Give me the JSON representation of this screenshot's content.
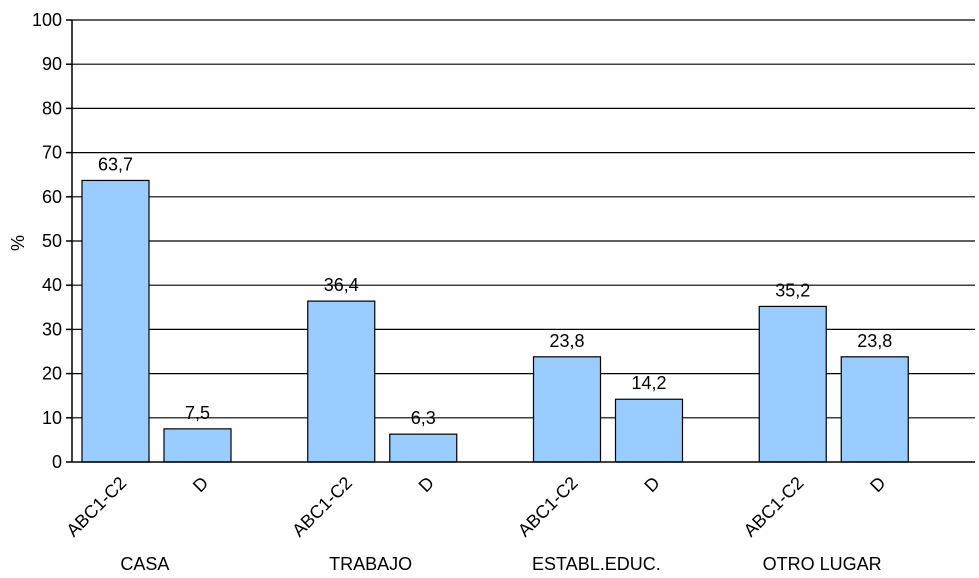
{
  "chart_data": {
    "type": "bar",
    "title": "",
    "ylabel": "%",
    "xlabel": "",
    "ylim": [
      0,
      100
    ],
    "yticks": [
      0,
      10,
      20,
      30,
      40,
      50,
      60,
      70,
      80,
      90,
      100
    ],
    "grid": true,
    "groups": [
      {
        "name": "CASA",
        "bars": [
          {
            "category": "ABC1-C2",
            "value": 63.7,
            "label": "63,7"
          },
          {
            "category": "D",
            "value": 7.5,
            "label": "7,5"
          }
        ]
      },
      {
        "name": "TRABAJO",
        "bars": [
          {
            "category": "ABC1-C2",
            "value": 36.4,
            "label": "36,4"
          },
          {
            "category": "D",
            "value": 6.3,
            "label": "6,3"
          }
        ]
      },
      {
        "name": "ESTABL.EDUC.",
        "bars": [
          {
            "category": "ABC1-C2",
            "value": 23.8,
            "label": "23,8"
          },
          {
            "category": "D",
            "value": 14.2,
            "label": "14,2"
          }
        ]
      },
      {
        "name": "OTRO LUGAR",
        "bars": [
          {
            "category": "ABC1-C2",
            "value": 35.2,
            "label": "35,2"
          },
          {
            "category": "D",
            "value": 23.8,
            "label": "23,8"
          }
        ]
      }
    ],
    "colors": {
      "bar_fill": "#99ccff",
      "bar_stroke": "#000000",
      "grid": "#000000"
    }
  }
}
